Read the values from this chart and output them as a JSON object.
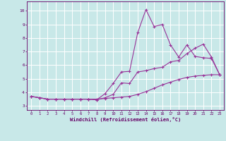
{
  "xlabel": "Windchill (Refroidissement éolien,°C)",
  "background_color": "#c8e8e8",
  "line_color": "#993399",
  "grid_color": "#aadddd",
  "axis_color": "#660066",
  "xlim_min": -0.5,
  "xlim_max": 23.5,
  "ylim_min": 2.7,
  "ylim_max": 10.7,
  "yticks": [
    3,
    4,
    5,
    6,
    7,
    8,
    9,
    10
  ],
  "xticks": [
    0,
    1,
    2,
    3,
    4,
    5,
    6,
    7,
    8,
    9,
    10,
    11,
    12,
    13,
    14,
    15,
    16,
    17,
    18,
    19,
    20,
    21,
    22,
    23
  ],
  "line1_x": [
    0,
    1,
    2,
    3,
    4,
    5,
    6,
    7,
    8,
    9,
    10,
    11,
    12,
    13,
    14,
    15,
    16,
    17,
    18,
    19,
    20,
    21,
    22,
    23
  ],
  "line1_y": [
    3.7,
    3.6,
    3.5,
    3.5,
    3.5,
    3.5,
    3.5,
    3.5,
    3.5,
    3.55,
    3.6,
    3.65,
    3.7,
    3.85,
    4.05,
    4.3,
    4.55,
    4.75,
    4.95,
    5.1,
    5.2,
    5.25,
    5.3,
    5.3
  ],
  "line2_x": [
    0,
    1,
    2,
    3,
    4,
    5,
    6,
    7,
    8,
    9,
    10,
    11,
    12,
    13,
    14,
    15,
    16,
    17,
    18,
    19,
    20,
    21,
    22,
    23
  ],
  "line2_y": [
    3.7,
    3.6,
    3.5,
    3.5,
    3.5,
    3.5,
    3.5,
    3.5,
    3.45,
    3.9,
    4.65,
    5.5,
    5.55,
    8.4,
    10.1,
    8.85,
    9.0,
    7.5,
    6.6,
    7.5,
    6.65,
    6.55,
    6.5,
    5.3
  ],
  "line3_x": [
    0,
    1,
    2,
    3,
    4,
    5,
    6,
    7,
    8,
    9,
    10,
    11,
    12,
    13,
    14,
    15,
    16,
    17,
    18,
    19,
    20,
    21,
    22,
    23
  ],
  "line3_y": [
    3.7,
    3.6,
    3.5,
    3.5,
    3.5,
    3.5,
    3.5,
    3.5,
    3.45,
    3.6,
    3.85,
    4.7,
    4.65,
    5.5,
    5.6,
    5.75,
    5.85,
    6.25,
    6.35,
    6.85,
    7.25,
    7.55,
    6.6,
    5.3
  ]
}
